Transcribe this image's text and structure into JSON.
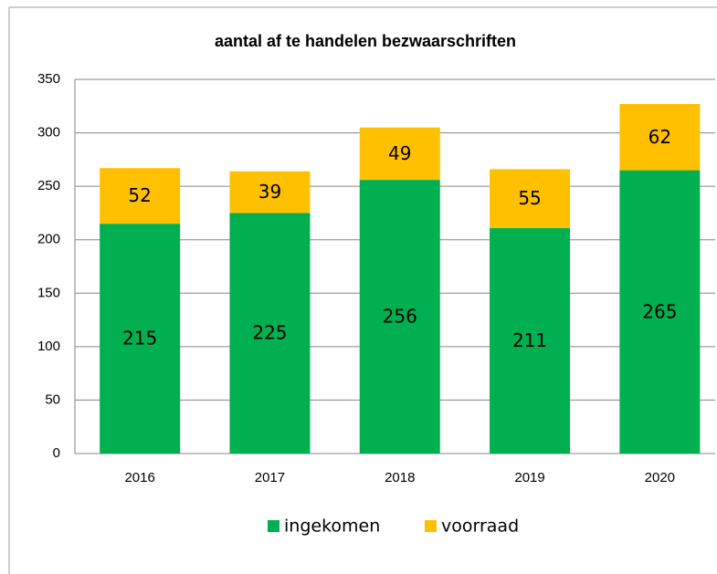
{
  "chart_data": {
    "type": "stacked_bar",
    "title": "aantal af te handelen bezwaarschriften",
    "categories": [
      "2016",
      "2017",
      "2018",
      "2019",
      "2020"
    ],
    "series": [
      {
        "name": "ingekomen",
        "color": "#00b050",
        "values": [
          215,
          225,
          256,
          211,
          265
        ]
      },
      {
        "name": "voorraad",
        "color": "#ffc000",
        "values": [
          52,
          39,
          49,
          55,
          62
        ]
      }
    ],
    "ylim": [
      0,
      350
    ],
    "yticks": [
      0,
      50,
      100,
      150,
      200,
      250,
      300,
      350
    ],
    "grid": true,
    "legend": "bottom"
  }
}
